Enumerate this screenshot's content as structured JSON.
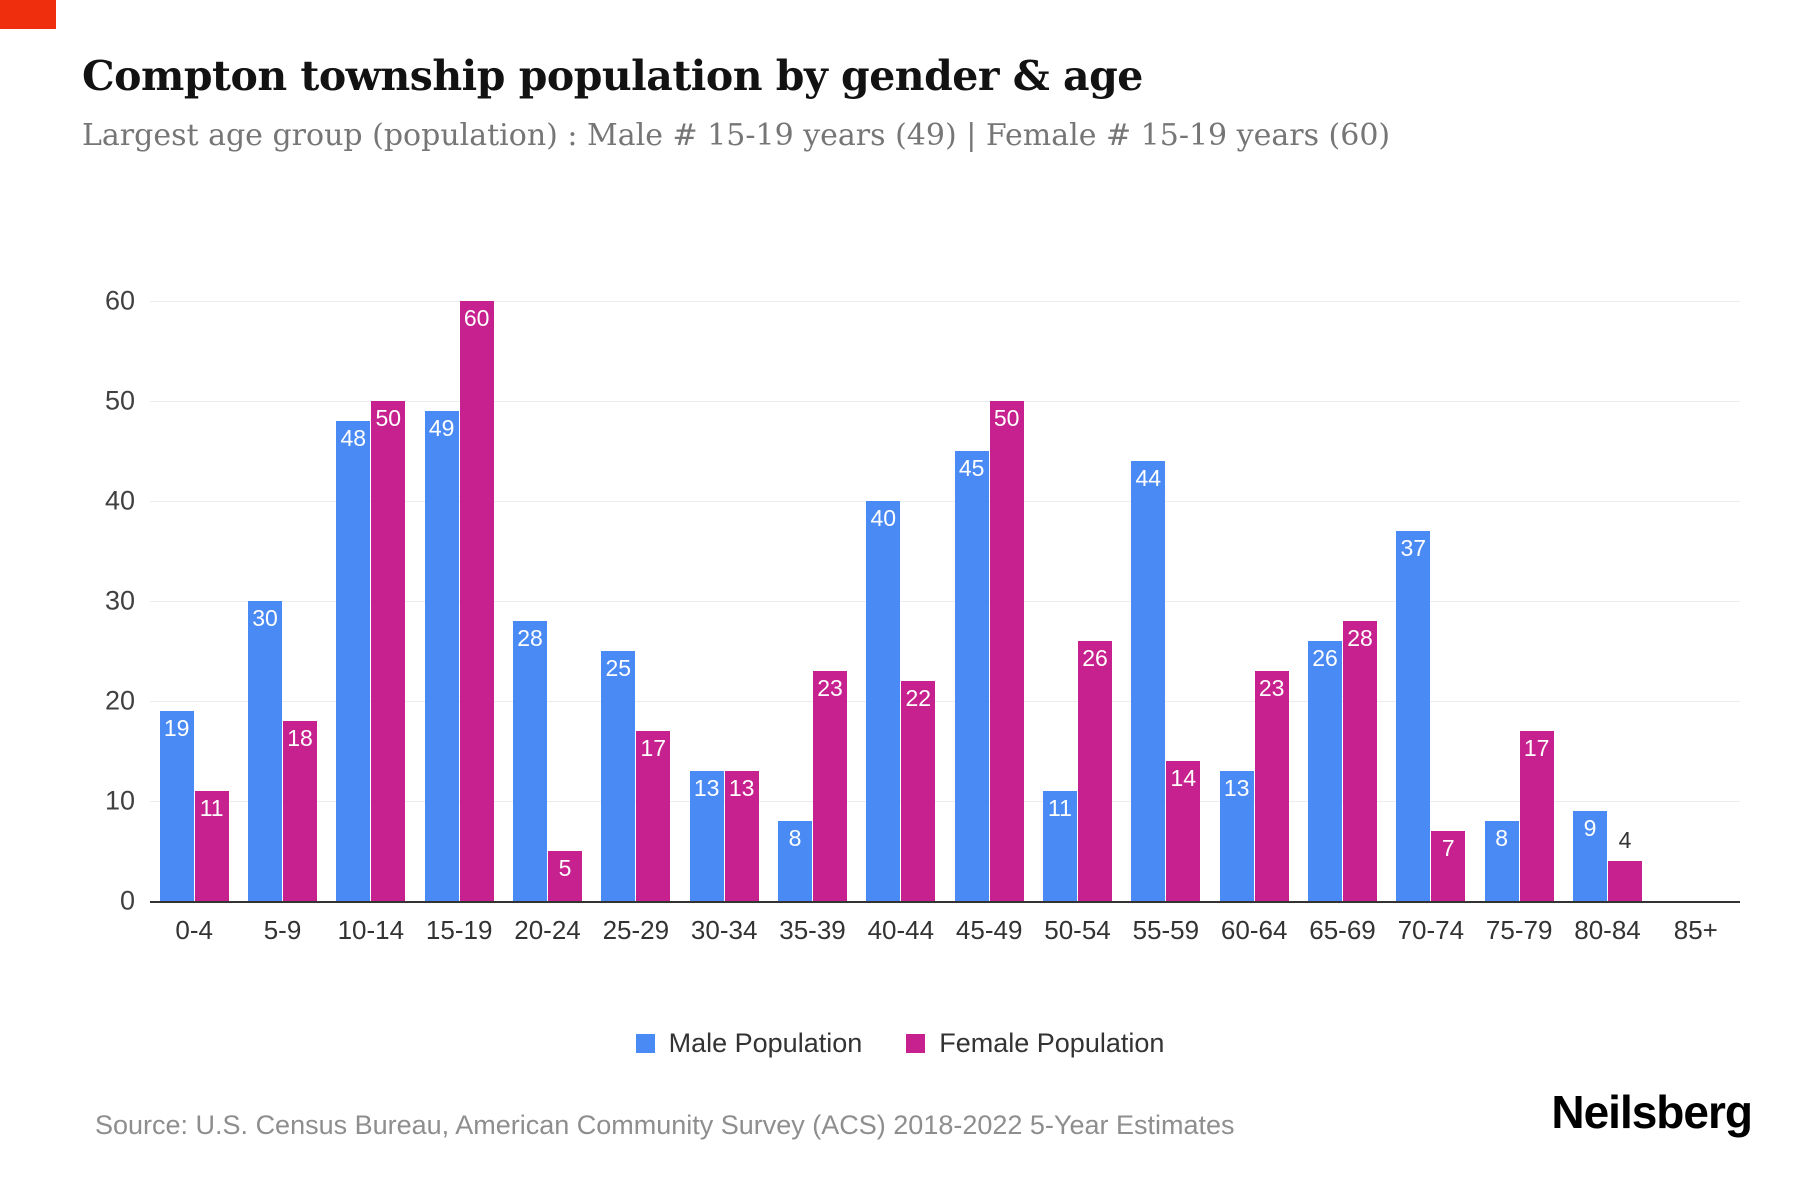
{
  "page": {
    "title": "Compton township population by gender & age",
    "subtitle": "Largest age group (population) : Male # 15-19 years (49) | Female # 15-19 years (60)",
    "source": "Source: U.S. Census Bureau, American Community Survey (ACS) 2018-2022 5-Year Estimates",
    "brand": "Neilsberg"
  },
  "colors": {
    "male": "#4a8af4",
    "female": "#c7218f",
    "accent_red": "#ee2e0c",
    "gridline": "#ececec",
    "axis": "#333333"
  },
  "chart_data": {
    "type": "bar",
    "title": "Compton township population by gender & age",
    "subtitle": "Largest age group (population) : Male # 15-19 years (49) | Female # 15-19 years (60)",
    "categories": [
      "0-4",
      "5-9",
      "10-14",
      "15-19",
      "20-24",
      "25-29",
      "30-34",
      "35-39",
      "40-44",
      "45-49",
      "50-54",
      "55-59",
      "60-64",
      "65-69",
      "70-74",
      "75-79",
      "80-84",
      "85+"
    ],
    "series": [
      {
        "name": "Male Population",
        "color": "#4a8af4",
        "values": [
          19,
          30,
          48,
          49,
          28,
          25,
          13,
          8,
          40,
          45,
          11,
          44,
          13,
          26,
          37,
          8,
          9,
          0
        ]
      },
      {
        "name": "Female Population",
        "color": "#c7218f",
        "values": [
          11,
          18,
          50,
          60,
          5,
          17,
          13,
          23,
          22,
          50,
          26,
          14,
          23,
          28,
          7,
          17,
          4,
          0
        ]
      }
    ],
    "xlabel": "",
    "ylabel": "",
    "ylim": [
      0,
      60
    ],
    "yticks": [
      0,
      10,
      20,
      30,
      40,
      50,
      60
    ],
    "grid": true,
    "legend_position": "bottom",
    "bar_value_labels": true
  }
}
